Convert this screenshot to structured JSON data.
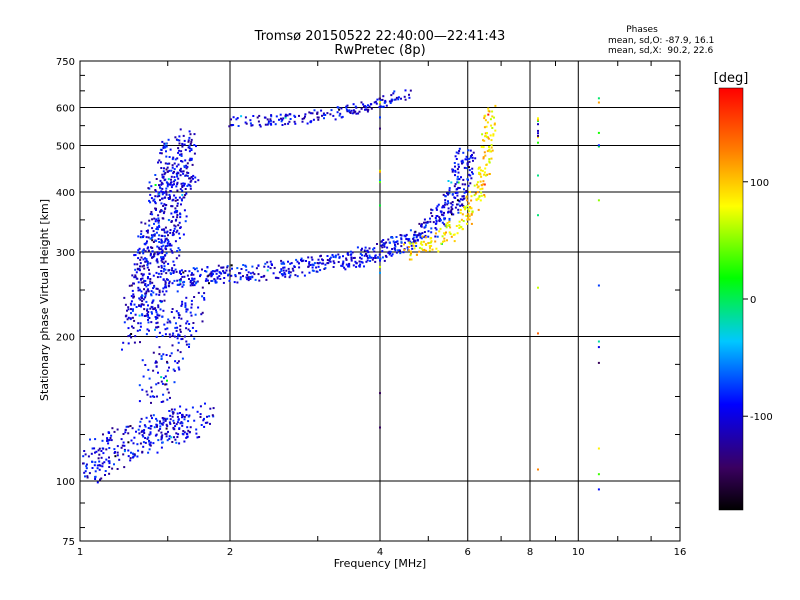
{
  "chart_data": {
    "type": "scatter",
    "title": "Tromsø 20150522 22:40:00—22:41:43",
    "subtitle": "RwPretec (8p)",
    "xlabel": "Frequency [MHz]",
    "ylabel": "Stationary phase Virtual Height [km]",
    "x_scale": "log",
    "y_scale": "log",
    "xlim": [
      1,
      16
    ],
    "ylim": [
      75,
      750
    ],
    "x_ticks": [
      "1",
      "2",
      "4",
      "6",
      "8",
      "10",
      "16"
    ],
    "y_ticks": [
      "750",
      "600",
      "500",
      "400",
      "300",
      "200",
      "100",
      "75"
    ],
    "x_gridlines": [
      2,
      4,
      6,
      8,
      10
    ],
    "y_gridlines": [
      100,
      200,
      300,
      400,
      500,
      600
    ],
    "grid": true,
    "legend": {
      "title": "Phases",
      "line1": "mean, sd,O: -87.9, 16.1",
      "line2": "mean, sd,X:  90.2, 22.6",
      "placement": "top-right"
    },
    "colorbar": {
      "label": "[deg]",
      "range": [
        -180,
        180
      ],
      "ticks": [
        "100",
        "0",
        "-100"
      ],
      "tick_values": [
        100,
        0,
        -100
      ],
      "colors": [
        "#000000",
        "#4b0082",
        "#0000ff",
        "#00ffff",
        "#00ff00",
        "#ffff00",
        "#ff7f00",
        "#ff0000"
      ]
    },
    "trace_phase_colors": {
      "o_mode": "#1e3cdc",
      "x_mode": "#e6dc00"
    },
    "traces": [
      {
        "name": "",
        "x": [
          1.0,
          1.1,
          1.2,
          1.3,
          1.4,
          1.5,
          1.6,
          1.75
        ],
        "y": [
          105,
          112,
          118,
          122,
          125,
          128,
          132,
          135
        ],
        "phase": -100
      },
      {
        "name": "",
        "x": [
          1.4,
          1.45,
          1.5,
          1.55,
          1.6,
          1.65,
          1.7
        ],
        "y": [
          150,
          170,
          190,
          200,
          210,
          230,
          250
        ],
        "phase": -100
      },
      {
        "name": "",
        "x": [
          1.3,
          1.35,
          1.4,
          1.45,
          1.5,
          1.55,
          1.6
        ],
        "y": [
          210,
          240,
          280,
          320,
          380,
          430,
          480
        ],
        "phase": -100
      },
      {
        "name": "",
        "x": [
          1.5,
          1.8,
          2.0,
          2.5,
          3.0,
          3.5,
          4.0,
          4.5,
          5.0,
          5.5,
          5.8,
          6.0
        ],
        "y": [
          265,
          268,
          270,
          275,
          282,
          290,
          300,
          315,
          335,
          370,
          420,
          480
        ],
        "phase": -95
      },
      {
        "name": "",
        "x": [
          2.0,
          2.5,
          3.0,
          3.5,
          4.0,
          4.5
        ],
        "y": [
          560,
          565,
          575,
          590,
          610,
          640
        ],
        "phase": -100
      },
      {
        "name": "",
        "x": [
          4.5,
          5.0,
          5.5,
          6.0,
          6.3,
          6.5,
          6.6,
          6.7
        ],
        "y": [
          300,
          310,
          330,
          360,
          400,
          450,
          520,
          600
        ],
        "phase": 90
      }
    ]
  }
}
